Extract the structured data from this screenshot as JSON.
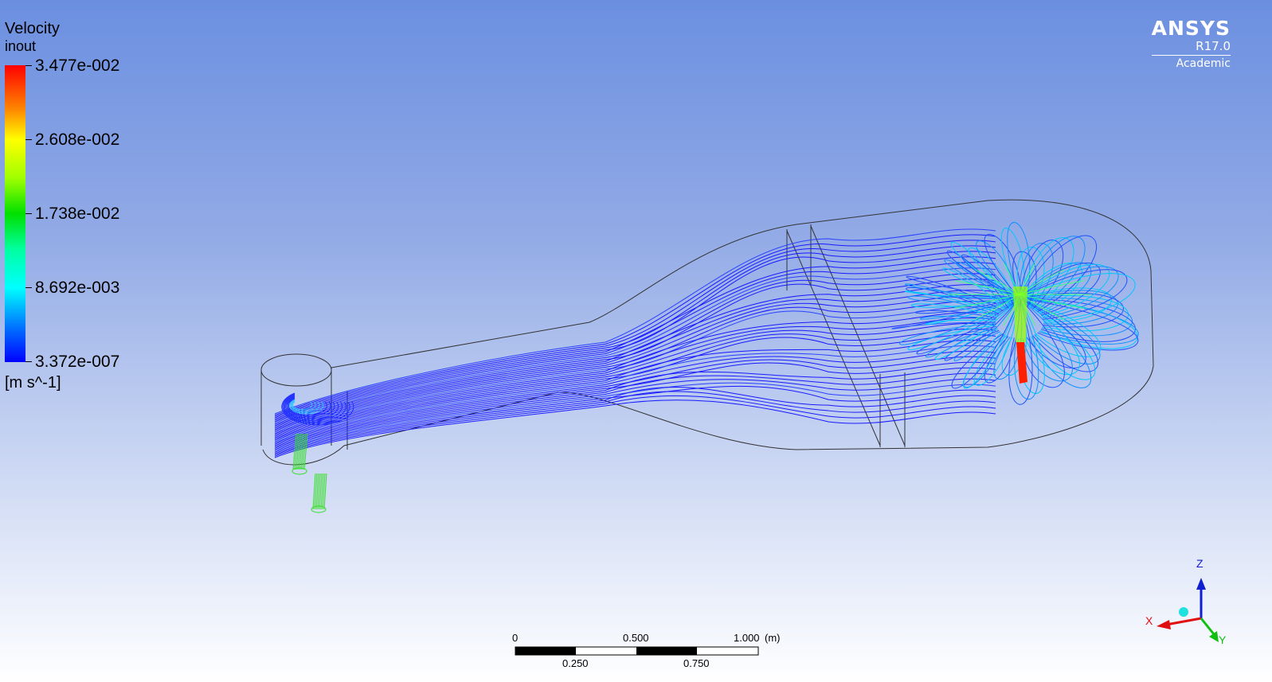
{
  "legend": {
    "title": "Velocity",
    "subtitle": "inout",
    "units": "[m s^-1]",
    "ticks": [
      "3.477e-002",
      "2.608e-002",
      "1.738e-002",
      "8.692e-003",
      "3.372e-007"
    ],
    "colors": [
      "#ff0000",
      "#ffff00",
      "#00e000",
      "#00ffff",
      "#0000ff"
    ]
  },
  "brand": {
    "name": "ANSYS",
    "version": "R17.0",
    "edition": "Academic"
  },
  "scale_bar": {
    "top_labels": [
      "0",
      "0.500",
      "1.000"
    ],
    "unit": "(m)",
    "bottom_labels": [
      "0.250",
      "0.750"
    ]
  },
  "axes": {
    "x_label": "X",
    "y_label": "Y",
    "z_label": "Z",
    "x_color": "#e01010",
    "y_color": "#10c010",
    "z_color": "#1020d0"
  }
}
